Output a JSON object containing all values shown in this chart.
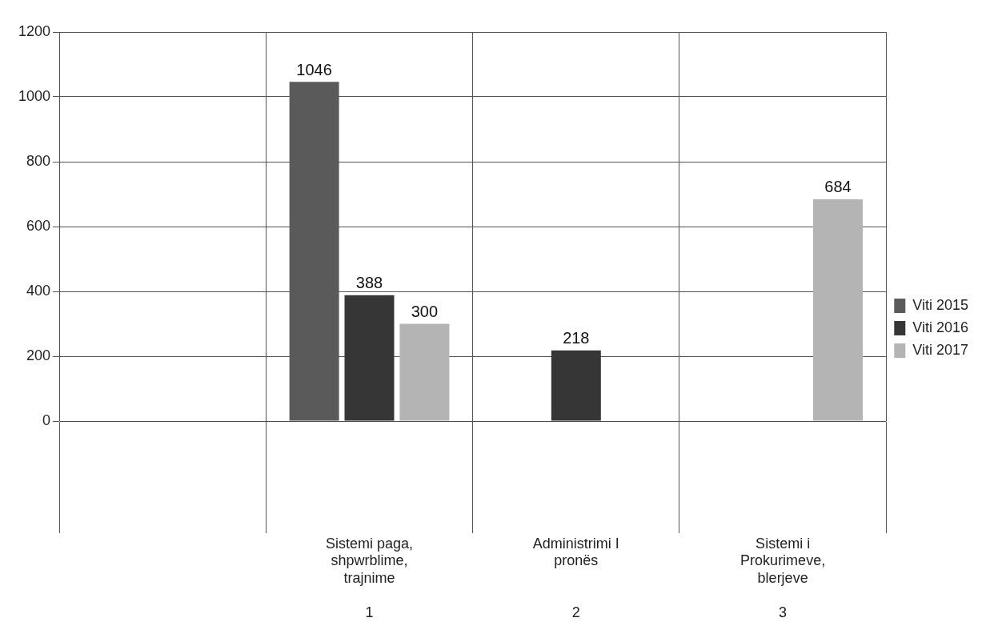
{
  "chart_data": {
    "type": "bar",
    "categories": [
      null,
      "Sistemi paga,\nshpwrblime,\ntrajnime\n\n1",
      "Administrimi I\npronës\n\n\n2",
      "Sistemi i\nProkurimeve,\nblerjeve\n\n3"
    ],
    "series": [
      {
        "name": "Viti 2015",
        "color": "#5a5a5a",
        "values": [
          null,
          1046,
          null,
          null
        ]
      },
      {
        "name": "Viti 2016",
        "color": "#363636",
        "values": [
          null,
          388,
          218,
          null
        ]
      },
      {
        "name": "Viti 2017",
        "color": "#b4b4b4",
        "values": [
          null,
          300,
          null,
          684
        ]
      }
    ],
    "ylim": [
      0,
      1200
    ],
    "yticks": [
      0,
      200,
      400,
      600,
      800,
      1000,
      1200
    ],
    "grid": "y",
    "legend": "right",
    "data_labels": true
  }
}
